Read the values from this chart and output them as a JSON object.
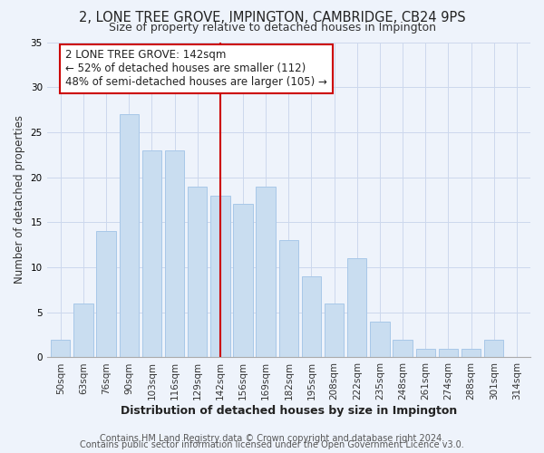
{
  "title": "2, LONE TREE GROVE, IMPINGTON, CAMBRIDGE, CB24 9PS",
  "subtitle": "Size of property relative to detached houses in Impington",
  "xlabel": "Distribution of detached houses by size in Impington",
  "ylabel": "Number of detached properties",
  "bar_labels": [
    "50sqm",
    "63sqm",
    "76sqm",
    "90sqm",
    "103sqm",
    "116sqm",
    "129sqm",
    "142sqm",
    "156sqm",
    "169sqm",
    "182sqm",
    "195sqm",
    "208sqm",
    "222sqm",
    "235sqm",
    "248sqm",
    "261sqm",
    "274sqm",
    "288sqm",
    "301sqm",
    "314sqm"
  ],
  "bar_values": [
    2,
    6,
    14,
    27,
    23,
    23,
    19,
    18,
    17,
    19,
    13,
    9,
    6,
    11,
    4,
    2,
    1,
    1,
    1,
    2,
    0
  ],
  "highlight_index": 7,
  "bar_color": "#c9ddf0",
  "bar_edge_color": "#a8c8e8",
  "highlight_line_color": "#cc0000",
  "annotation_text": "2 LONE TREE GROVE: 142sqm\n← 52% of detached houses are smaller (112)\n48% of semi-detached houses are larger (105) →",
  "annotation_box_color": "#ffffff",
  "annotation_box_edge": "#cc0000",
  "ylim": [
    0,
    35
  ],
  "yticks": [
    0,
    5,
    10,
    15,
    20,
    25,
    30,
    35
  ],
  "footer1": "Contains HM Land Registry data © Crown copyright and database right 2024.",
  "footer2": "Contains public sector information licensed under the Open Government Licence v3.0.",
  "bg_color": "#eef3fb",
  "plot_bg_color": "#eef3fb",
  "title_fontsize": 10.5,
  "subtitle_fontsize": 9,
  "xlabel_fontsize": 9,
  "ylabel_fontsize": 8.5,
  "tick_fontsize": 7.5,
  "annotation_fontsize": 8.5,
  "footer_fontsize": 7
}
